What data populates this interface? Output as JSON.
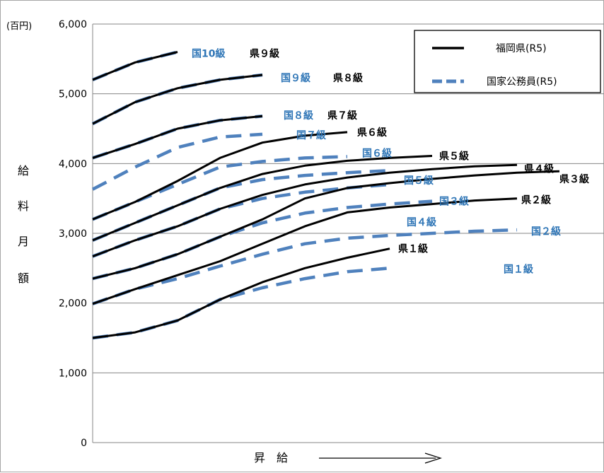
{
  "chart_data": {
    "type": "line",
    "y_unit": "(百円)",
    "y_axis_label": [
      "給",
      "料",
      "月",
      "額"
    ],
    "x_axis_label": "昇　給",
    "ylim": [
      0,
      6000
    ],
    "y_ticks": [
      "0",
      "1,000",
      "2,000",
      "3,000",
      "4,000",
      "5,000",
      "6,000"
    ],
    "y_tick_values": [
      0,
      1000,
      2000,
      3000,
      4000,
      5000,
      6000
    ],
    "grid": true,
    "legend_position": "top-right",
    "legend": [
      {
        "label": "福岡県(R5)",
        "style": "solid",
        "color": "#000000"
      },
      {
        "label": "国家公務員(R5)",
        "style": "dashed",
        "color": "#4f81bd"
      }
    ],
    "series": [
      {
        "name": "県１級",
        "group": "pref",
        "label": "県１級",
        "points": [
          [
            0,
            1500
          ],
          [
            10,
            1580
          ],
          [
            20,
            1750
          ],
          [
            30,
            2050
          ],
          [
            40,
            2300
          ],
          [
            50,
            2500
          ],
          [
            60,
            2650
          ],
          [
            70,
            2780
          ]
        ]
      },
      {
        "name": "県２級",
        "group": "pref",
        "label": "県２級",
        "points": [
          [
            0,
            1990
          ],
          [
            10,
            2200
          ],
          [
            20,
            2400
          ],
          [
            30,
            2600
          ],
          [
            40,
            2850
          ],
          [
            50,
            3100
          ],
          [
            60,
            3300
          ],
          [
            70,
            3370
          ],
          [
            80,
            3420
          ],
          [
            90,
            3470
          ],
          [
            100,
            3500
          ]
        ]
      },
      {
        "name": "県３級",
        "group": "pref",
        "label": "県３級",
        "points": [
          [
            0,
            2350
          ],
          [
            10,
            2500
          ],
          [
            20,
            2700
          ],
          [
            30,
            2950
          ],
          [
            40,
            3200
          ],
          [
            50,
            3500
          ],
          [
            60,
            3650
          ],
          [
            70,
            3720
          ],
          [
            80,
            3780
          ],
          [
            90,
            3830
          ],
          [
            100,
            3870
          ],
          [
            110,
            3890
          ]
        ]
      },
      {
        "name": "県４級",
        "group": "pref",
        "label": "県４級",
        "points": [
          [
            0,
            2670
          ],
          [
            10,
            2900
          ],
          [
            20,
            3100
          ],
          [
            30,
            3350
          ],
          [
            40,
            3550
          ],
          [
            50,
            3700
          ],
          [
            60,
            3800
          ],
          [
            70,
            3870
          ],
          [
            80,
            3920
          ],
          [
            90,
            3960
          ],
          [
            100,
            3980
          ]
        ]
      },
      {
        "name": "県５級",
        "group": "pref",
        "label": "県５級",
        "points": [
          [
            0,
            2900
          ],
          [
            10,
            3150
          ],
          [
            20,
            3400
          ],
          [
            30,
            3650
          ],
          [
            40,
            3850
          ],
          [
            50,
            3970
          ],
          [
            60,
            4040
          ],
          [
            70,
            4080
          ],
          [
            80,
            4110
          ]
        ]
      },
      {
        "name": "県６級",
        "group": "pref",
        "label": "県６級",
        "points": [
          [
            0,
            3200
          ],
          [
            10,
            3450
          ],
          [
            20,
            3750
          ],
          [
            30,
            4080
          ],
          [
            40,
            4300
          ],
          [
            50,
            4400
          ],
          [
            60,
            4450
          ]
        ]
      },
      {
        "name": "県７級",
        "group": "pref",
        "label": "県７級",
        "points": [
          [
            0,
            4080
          ],
          [
            10,
            4280
          ],
          [
            20,
            4500
          ],
          [
            30,
            4620
          ],
          [
            40,
            4680
          ]
        ]
      },
      {
        "name": "県８級",
        "group": "pref",
        "label": "県８級",
        "points": [
          [
            0,
            4570
          ],
          [
            10,
            4880
          ],
          [
            20,
            5080
          ],
          [
            30,
            5200
          ],
          [
            40,
            5270
          ]
        ]
      },
      {
        "name": "県９級",
        "group": "pref",
        "label": "県９級",
        "points": [
          [
            0,
            5200
          ],
          [
            10,
            5450
          ],
          [
            20,
            5600
          ]
        ]
      },
      {
        "name": "国１級",
        "group": "nat",
        "label": "国１級",
        "points": [
          [
            0,
            1500
          ],
          [
            10,
            1580
          ],
          [
            20,
            1750
          ],
          [
            30,
            2050
          ],
          [
            40,
            2220
          ],
          [
            50,
            2350
          ],
          [
            60,
            2450
          ],
          [
            70,
            2500
          ]
        ]
      },
      {
        "name": "国２級",
        "group": "nat",
        "label": "国２級",
        "points": [
          [
            0,
            1990
          ],
          [
            10,
            2200
          ],
          [
            20,
            2350
          ],
          [
            30,
            2530
          ],
          [
            40,
            2700
          ],
          [
            50,
            2850
          ],
          [
            60,
            2930
          ],
          [
            70,
            2970
          ],
          [
            80,
            3000
          ],
          [
            90,
            3030
          ],
          [
            100,
            3050
          ]
        ]
      },
      {
        "name": "国３級",
        "group": "nat",
        "label": "国３級",
        "points": [
          [
            0,
            2350
          ],
          [
            10,
            2500
          ],
          [
            20,
            2700
          ],
          [
            30,
            2950
          ],
          [
            40,
            3150
          ],
          [
            50,
            3290
          ],
          [
            60,
            3370
          ],
          [
            70,
            3420
          ],
          [
            80,
            3460
          ]
        ]
      },
      {
        "name": "国４級",
        "group": "nat",
        "label": "国４級",
        "points": [
          [
            0,
            2670
          ],
          [
            10,
            2900
          ],
          [
            20,
            3100
          ],
          [
            30,
            3350
          ],
          [
            40,
            3500
          ],
          [
            50,
            3590
          ],
          [
            60,
            3650
          ],
          [
            70,
            3700
          ]
        ]
      },
      {
        "name": "国５級",
        "group": "nat",
        "label": "国５級",
        "points": [
          [
            0,
            2900
          ],
          [
            10,
            3150
          ],
          [
            20,
            3400
          ],
          [
            30,
            3650
          ],
          [
            40,
            3770
          ],
          [
            50,
            3830
          ],
          [
            60,
            3870
          ],
          [
            70,
            3900
          ]
        ]
      },
      {
        "name": "国６級",
        "group": "nat",
        "label": "国６級",
        "points": [
          [
            0,
            3200
          ],
          [
            10,
            3450
          ],
          [
            20,
            3700
          ],
          [
            30,
            3950
          ],
          [
            40,
            4030
          ],
          [
            50,
            4080
          ],
          [
            60,
            4100
          ]
        ]
      },
      {
        "name": "国７級",
        "group": "nat",
        "label": "国７級",
        "points": [
          [
            0,
            3630
          ],
          [
            10,
            3950
          ],
          [
            20,
            4230
          ],
          [
            30,
            4380
          ],
          [
            40,
            4420
          ]
        ]
      },
      {
        "name": "国８級",
        "group": "nat",
        "label": "国８級",
        "points": [
          [
            0,
            4080
          ],
          [
            10,
            4280
          ],
          [
            20,
            4500
          ],
          [
            30,
            4620
          ],
          [
            40,
            4680
          ]
        ]
      },
      {
        "name": "国９級",
        "group": "nat",
        "label": "国９級",
        "points": [
          [
            0,
            4570
          ],
          [
            10,
            4880
          ],
          [
            20,
            5080
          ],
          [
            30,
            5200
          ],
          [
            40,
            5270
          ]
        ]
      },
      {
        "name": "国10級",
        "group": "nat",
        "label": "国10級",
        "points": [
          [
            0,
            5200
          ],
          [
            10,
            5450
          ],
          [
            20,
            5600
          ]
        ]
      }
    ]
  },
  "colors": {
    "pref": "#000000",
    "nat": "#4f81bd",
    "nat_label": "#2e75b6",
    "grid": "#868686"
  }
}
